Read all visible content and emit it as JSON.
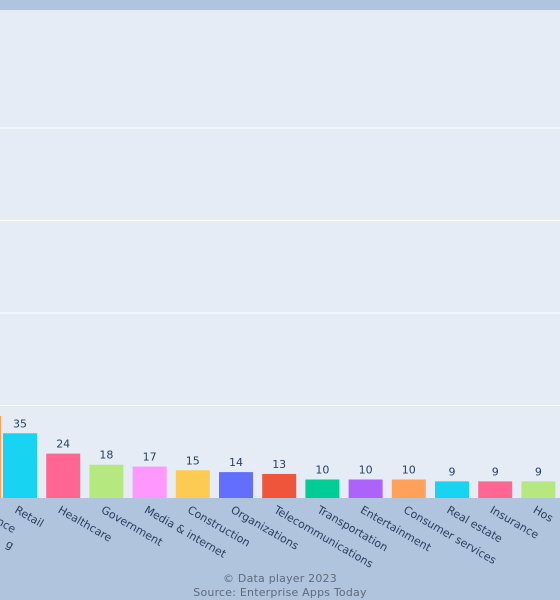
{
  "chart_data": {
    "type": "bar",
    "title": "",
    "xlabel": "",
    "ylabel": "",
    "ylim": [
      0,
      240
    ],
    "y_gridlines": [
      0,
      50,
      100,
      150,
      200
    ],
    "grid": true,
    "legend": "none",
    "categories": [
      "Manufacturing",
      "Finance",
      "Retail",
      "Healthcare",
      "Government",
      "Media & internet",
      "Construction",
      "Organizations",
      "Telecommunications",
      "Transportation",
      "Entertainment",
      "Consumer services",
      "Real estate",
      "Insurance",
      "Hospitality"
    ],
    "values": [
      null,
      null,
      35,
      24,
      18,
      17,
      15,
      14,
      13,
      10,
      10,
      10,
      9,
      9,
      9
    ],
    "colors": [
      "#ab63fa",
      "#ffa15a",
      "#19d3f3",
      "#ff6692",
      "#b6e880",
      "#ff97ff",
      "#fecb52",
      "#636efa",
      "#ef553b",
      "#00cc96",
      "#ab63fa",
      "#ffa15a",
      "#19d3f3",
      "#ff6692",
      "#b6e880"
    ],
    "visible_tick_text": [
      "g",
      "ance",
      "Retail",
      "Healthcare",
      "Government",
      "Media & internet",
      "Construction",
      "Organizations",
      "Telecommunications",
      "Transportation",
      "Entertainment",
      "Consumer services",
      "Real estate",
      "Insurance",
      "Hos"
    ],
    "visible_value_text": [
      "",
      "",
      "35",
      "24",
      "18",
      "17",
      "15",
      "14",
      "13",
      "10",
      "10",
      "10",
      "9",
      "9",
      "9"
    ]
  },
  "footer": {
    "line1": "© Data player 2023",
    "line2": "Source: Enterprise Apps Today"
  },
  "colors": {
    "paper": "#b0c4de",
    "plot_bg": "#e5ecf6",
    "grid": "#ffffff",
    "text": "#2a3f5f",
    "footer_text": "#5f6b7a"
  }
}
